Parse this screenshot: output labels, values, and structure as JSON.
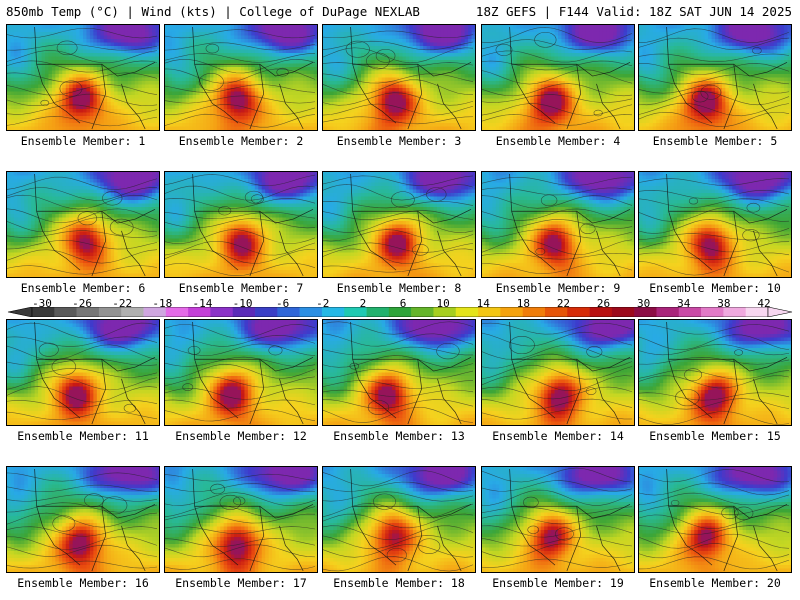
{
  "header": {
    "left": "850mb Temp (°C) | Wind (kts) | College of DuPage NEXLAB",
    "right": "18Z GEFS | F144 Valid: 18Z SAT JUN 14 2025"
  },
  "members": [
    "Ensemble Member: 1",
    "Ensemble Member: 2",
    "Ensemble Member: 3",
    "Ensemble Member: 4",
    "Ensemble Member: 5",
    "Ensemble Member: 6",
    "Ensemble Member: 7",
    "Ensemble Member: 8",
    "Ensemble Member: 9",
    "Ensemble Member: 10",
    "Ensemble Member: 11",
    "Ensemble Member: 12",
    "Ensemble Member: 13",
    "Ensemble Member: 14",
    "Ensemble Member: 15",
    "Ensemble Member: 16",
    "Ensemble Member: 17",
    "Ensemble Member: 18",
    "Ensemble Member: 19",
    "Ensemble Member: 20"
  ],
  "colorbar": {
    "labels": [
      "-30",
      "-26",
      "-22",
      "-18",
      "-14",
      "-10",
      "-6",
      "-2",
      "2",
      "6",
      "10",
      "14",
      "18",
      "22",
      "26",
      "30",
      "34",
      "38",
      "42"
    ],
    "colors": [
      "#3a3a3a",
      "#5a5a5a",
      "#777777",
      "#939393",
      "#b0b0b0",
      "#cfa6e0",
      "#e46ae8",
      "#c43fd8",
      "#8b32c8",
      "#5b2bb8",
      "#3a3fc6",
      "#2f66d8",
      "#2b8fe3",
      "#25b8e6",
      "#1fc9b2",
      "#22b26e",
      "#2ea43a",
      "#64b52a",
      "#a6cf1f",
      "#e4e41a",
      "#f3c613",
      "#f5a20e",
      "#f07d0a",
      "#e65508",
      "#d62c08",
      "#b81010",
      "#9c0a1c",
      "#8c0c44",
      "#a9247a",
      "#c94aa6",
      "#e27ac7",
      "#f0a9df",
      "#f7d6f0"
    ]
  }
}
